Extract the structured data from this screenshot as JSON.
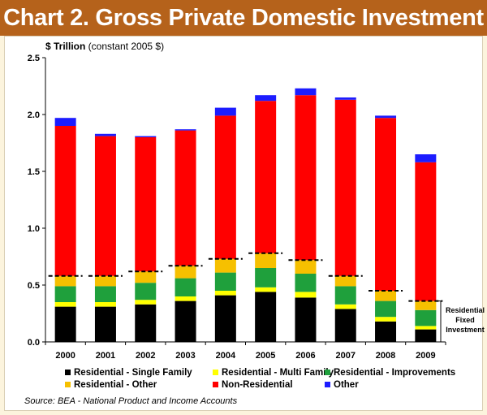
{
  "header": {
    "title": "Chart 2. Gross Private Domestic Investment"
  },
  "source": "Source: BEA - National Product and Income Accounts",
  "chart_data": {
    "type": "bar",
    "stacked": true,
    "title": "Chart 2. Gross Private Domestic Investment",
    "ylabel_bold": "$ Trillion",
    "ylabel_rest": " (constant 2005 $)",
    "ylim": [
      0,
      2.5
    ],
    "yticks": [
      "0.0",
      "0.5",
      "1.0",
      "1.5",
      "2.0",
      "2.5"
    ],
    "ytick_values": [
      0,
      0.5,
      1.0,
      1.5,
      2.0,
      2.5
    ],
    "categories": [
      "2000",
      "2001",
      "2002",
      "2003",
      "2004",
      "2005",
      "2006",
      "2007",
      "2008",
      "2009"
    ],
    "series": [
      {
        "name": "Residential - Single Family",
        "color": "#000000",
        "values": [
          0.31,
          0.31,
          0.33,
          0.36,
          0.41,
          0.44,
          0.39,
          0.29,
          0.18,
          0.11
        ]
      },
      {
        "name": "Residential - Multi Family",
        "color": "#ffff00",
        "values": [
          0.04,
          0.04,
          0.04,
          0.04,
          0.04,
          0.04,
          0.05,
          0.04,
          0.04,
          0.03
        ]
      },
      {
        "name": "Residential - Improvements",
        "color": "#1fa03c",
        "values": [
          0.14,
          0.14,
          0.15,
          0.16,
          0.16,
          0.17,
          0.16,
          0.16,
          0.14,
          0.14
        ]
      },
      {
        "name": "Residential - Other",
        "color": "#f6c000",
        "values": [
          0.09,
          0.09,
          0.1,
          0.11,
          0.12,
          0.13,
          0.12,
          0.09,
          0.09,
          0.08
        ]
      },
      {
        "name": "Non-Residential",
        "color": "#ff0000",
        "values": [
          1.32,
          1.23,
          1.18,
          1.19,
          1.26,
          1.34,
          1.45,
          1.55,
          1.52,
          1.22
        ]
      },
      {
        "name": "Other",
        "color": "#1c1cff",
        "values": [
          0.07,
          0.02,
          0.01,
          0.01,
          0.07,
          0.05,
          0.06,
          0.02,
          0.02,
          0.07
        ]
      }
    ],
    "legend_rows": [
      [
        "Residential - Single Family",
        "Residential - Multi Family",
        "Residential - Improvements"
      ],
      [
        "Residential - Other",
        "Non-Residential",
        "Other"
      ]
    ],
    "annotation": {
      "text_lines": [
        "Residential",
        "Fixed",
        "Investment"
      ],
      "description": "dashed markers at the top of residential fixed investment"
    },
    "grid": false,
    "legend_position": "bottom"
  }
}
